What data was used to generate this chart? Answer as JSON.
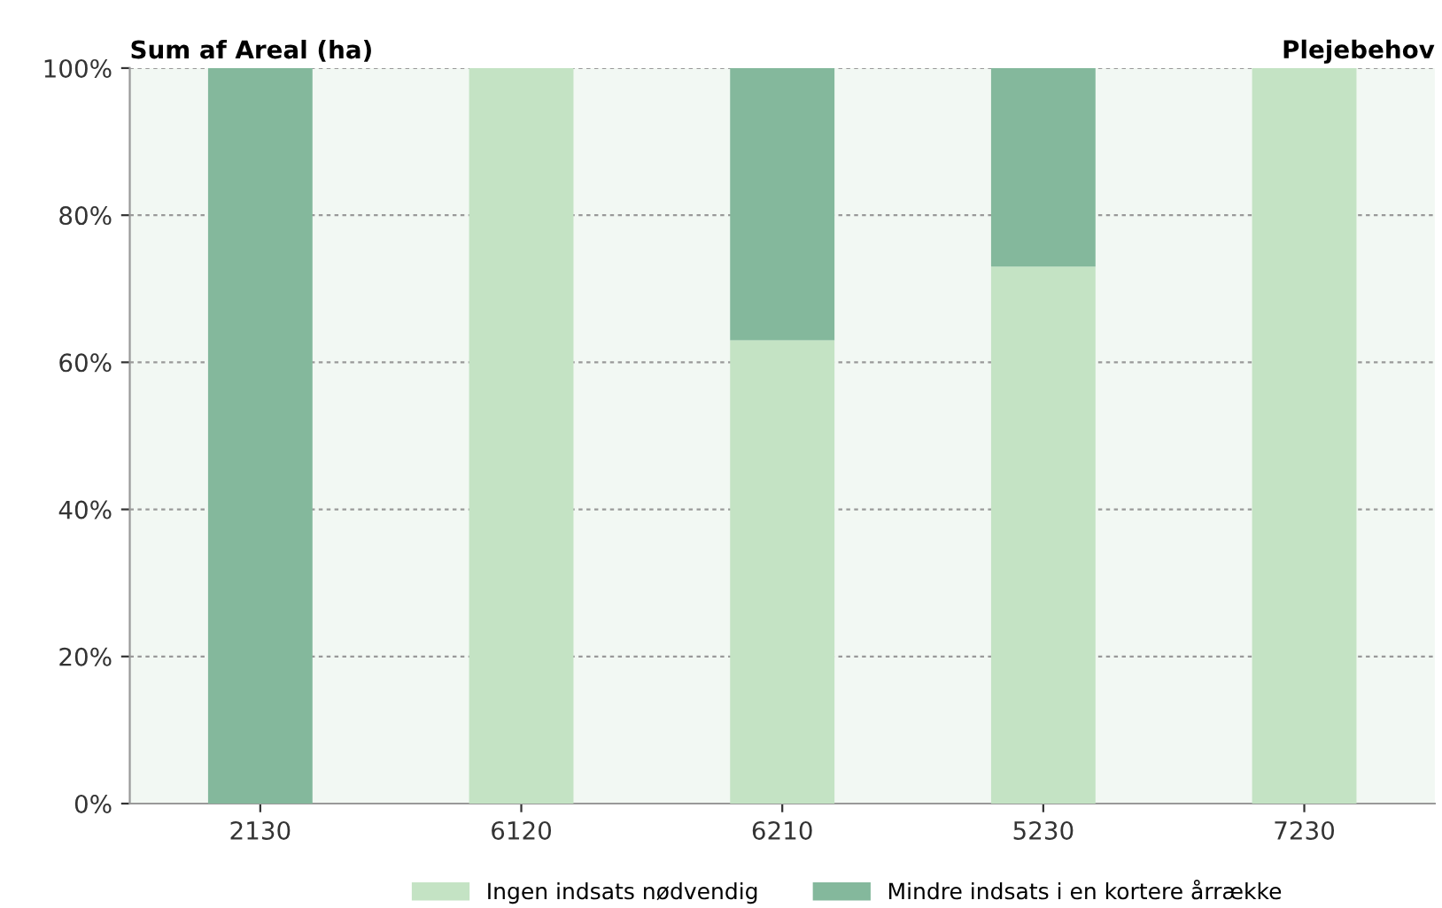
{
  "chart_data": {
    "type": "bar",
    "stacked": true,
    "title": "Sum af Areal (ha)",
    "legend_title": "Plejebehov",
    "categories": [
      "2130",
      "6120",
      "6210",
      "5230",
      "7230"
    ],
    "series": [
      {
        "name": "Ingen indsats nødvendig",
        "color": "#c4e3c4",
        "values": [
          0,
          100,
          63,
          73,
          100
        ]
      },
      {
        "name": "Mindre indsats i en kortere årrække",
        "color": "#84b89c",
        "values": [
          100,
          0,
          37,
          27,
          0
        ]
      }
    ],
    "ylim": [
      0,
      100
    ],
    "yticks": [
      {
        "value": 0,
        "label": "0%"
      },
      {
        "value": 20,
        "label": "20%"
      },
      {
        "value": 40,
        "label": "40%"
      },
      {
        "value": 60,
        "label": "60%"
      },
      {
        "value": 80,
        "label": "80%"
      },
      {
        "value": 100,
        "label": "100%"
      }
    ],
    "grid": "y",
    "legend": "bottom"
  }
}
